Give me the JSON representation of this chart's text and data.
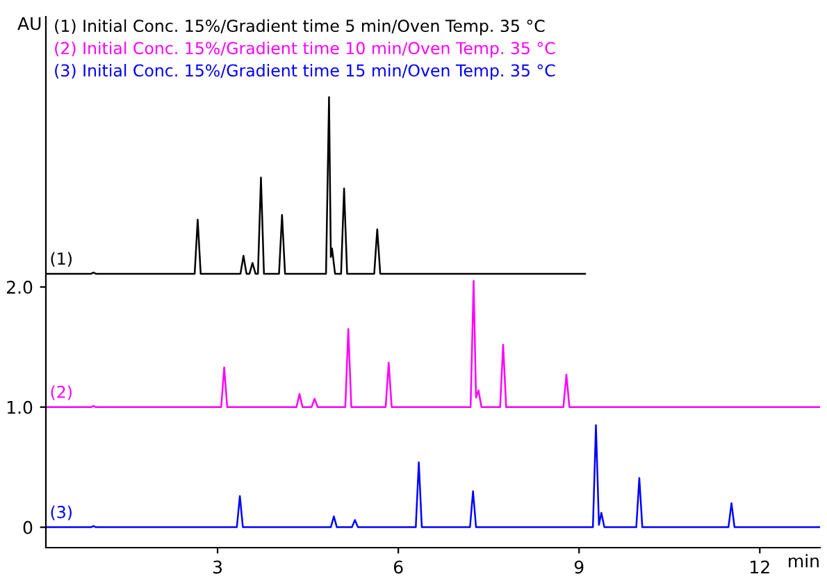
{
  "chart_data": {
    "type": "line",
    "ylabel": "AU",
    "xlabel": "min",
    "xlim": [
      0.15,
      13
    ],
    "xticks": [
      3,
      6,
      9,
      12
    ],
    "ylim": [
      -0.17,
      4.25
    ],
    "yticks": [
      0,
      {
        "value": 1,
        "label": "1.0"
      },
      {
        "value": 2,
        "label": "2.0"
      }
    ],
    "grid": false,
    "marker": "none",
    "line_style": "solid",
    "series": [
      {
        "name": "(1) Initial Conc. 15%/Gradient time 5 min/Oven Temp. 35 °C",
        "color": "#000000",
        "x": [
          0.15,
          0.9,
          0.94,
          0.98,
          2.62,
          2.67,
          2.72,
          3.38,
          3.43,
          3.48,
          3.53,
          3.58,
          3.63,
          3.67,
          3.72,
          3.77,
          4.02,
          4.07,
          4.12,
          4.8,
          4.85,
          4.88,
          4.9,
          4.95,
          5.05,
          5.1,
          5.15,
          5.6,
          5.65,
          5.7,
          9.1
        ],
        "values": [
          2.11,
          2.11,
          2.12,
          2.11,
          2.11,
          2.56,
          2.11,
          2.11,
          2.26,
          2.11,
          2.11,
          2.2,
          2.11,
          2.11,
          2.91,
          2.11,
          2.11,
          2.6,
          2.11,
          2.11,
          3.58,
          2.25,
          2.32,
          2.11,
          2.11,
          2.82,
          2.11,
          2.11,
          2.48,
          2.11,
          2.11
        ]
      },
      {
        "name": "(2) Initial Conc. 15%/Gradient time 10 min/Oven Temp. 35 °C",
        "color": "#ff00ff",
        "x": [
          0.15,
          0.9,
          0.94,
          0.98,
          3.06,
          3.11,
          3.16,
          4.31,
          4.36,
          4.41,
          4.56,
          4.61,
          4.66,
          5.12,
          5.17,
          5.22,
          5.79,
          5.84,
          5.89,
          7.2,
          7.25,
          7.29,
          7.33,
          7.38,
          7.69,
          7.74,
          7.79,
          8.74,
          8.79,
          8.84,
          13
        ],
        "values": [
          1.0,
          1.0,
          1.01,
          1.0,
          1.0,
          1.33,
          1.0,
          1.0,
          1.11,
          1.0,
          1.0,
          1.07,
          1.0,
          1.0,
          1.65,
          1.0,
          1.0,
          1.37,
          1.0,
          1.0,
          2.05,
          1.08,
          1.14,
          1.0,
          1.0,
          1.52,
          1.0,
          1.0,
          1.27,
          1.0,
          1.0
        ]
      },
      {
        "name": "(3) Initial Conc. 15%/Gradient time 15 min/Oven Temp. 35 °C",
        "color": "#0000ff",
        "x": [
          0.15,
          0.9,
          0.94,
          0.98,
          3.32,
          3.37,
          3.42,
          4.88,
          4.93,
          4.98,
          5.23,
          5.28,
          5.33,
          6.29,
          6.34,
          6.39,
          7.19,
          7.24,
          7.29,
          9.23,
          9.28,
          9.33,
          9.37,
          9.42,
          9.95,
          10.0,
          10.05,
          11.48,
          11.53,
          11.58,
          13
        ],
        "values": [
          0,
          0,
          0.01,
          0,
          0,
          0.26,
          0,
          0,
          0.09,
          0,
          0,
          0.06,
          0,
          0,
          0.54,
          0,
          0,
          0.3,
          0,
          0,
          0.85,
          0.02,
          0.12,
          0,
          0,
          0.41,
          0,
          0,
          0.2,
          0,
          0
        ]
      }
    ],
    "annotations": [
      "(1)",
      "(2)",
      "(3)"
    ]
  }
}
